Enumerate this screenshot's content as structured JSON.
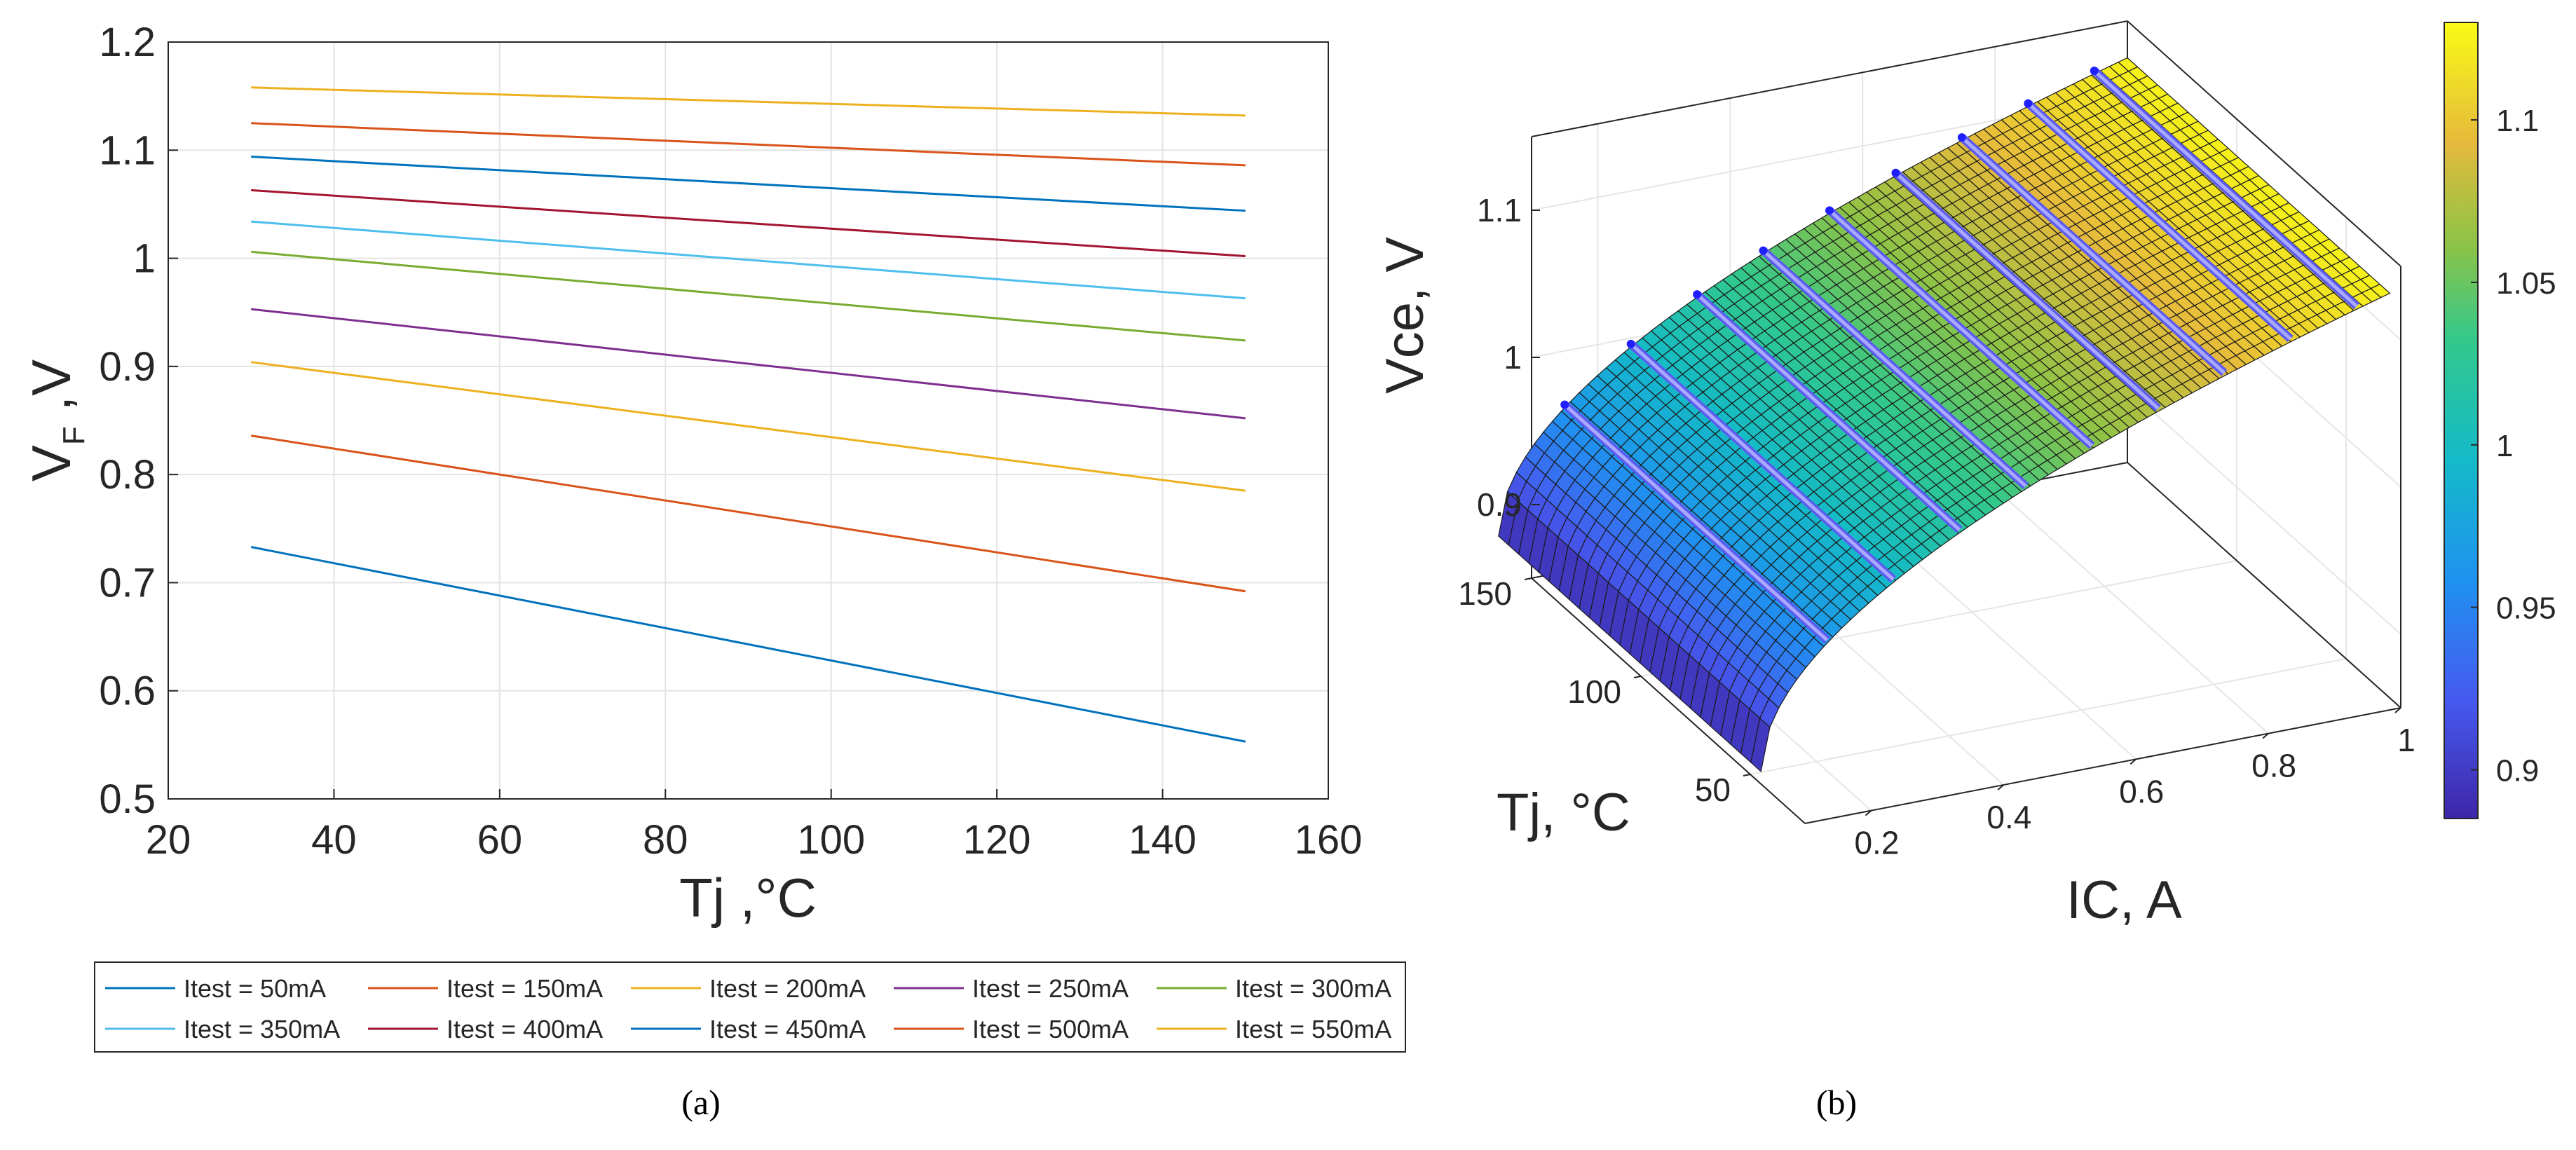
{
  "chart_data": [
    {
      "type": "line",
      "caption": "(a)",
      "xlabel": "Tj ,°C",
      "ylabel_main": "V",
      "ylabel_sub": "F",
      "ylabel_tail": " ,V",
      "xlim": [
        20,
        160
      ],
      "ylim": [
        0.5,
        1.2
      ],
      "xticks": [
        "20",
        "40",
        "60",
        "80",
        "100",
        "120",
        "140",
        "160"
      ],
      "yticks": [
        "0.5",
        "0.6",
        "0.7",
        "0.8",
        "0.9",
        "1",
        "1.1",
        "1.2"
      ],
      "grid": true,
      "legend_position": "bottom",
      "x": [
        30,
        150
      ],
      "series": [
        {
          "name": "Itest = 50mA",
          "color": "#0072BD",
          "values": [
            0.733,
            0.553
          ]
        },
        {
          "name": "Itest = 150mA",
          "color": "#D95319",
          "values": [
            0.836,
            0.692
          ]
        },
        {
          "name": "Itest = 200mA",
          "color": "#EDB120",
          "values": [
            0.904,
            0.785
          ]
        },
        {
          "name": "Itest = 250mA",
          "color": "#7E2F8E",
          "values": [
            0.953,
            0.852
          ]
        },
        {
          "name": "Itest = 300mA",
          "color": "#77AC30",
          "values": [
            1.006,
            0.924
          ]
        },
        {
          "name": "Itest = 350mA",
          "color": "#4DBEEE",
          "values": [
            1.034,
            0.963
          ]
        },
        {
          "name": "Itest = 400mA",
          "color": "#A2142F",
          "values": [
            1.063,
            1.002
          ]
        },
        {
          "name": "Itest = 450mA",
          "color": "#0072BD",
          "values": [
            1.094,
            1.044
          ]
        },
        {
          "name": "Itest = 500mA",
          "color": "#D95319",
          "values": [
            1.125,
            1.086
          ]
        },
        {
          "name": "Itest = 550mA",
          "color": "#EDB120",
          "values": [
            1.158,
            1.132
          ]
        }
      ]
    },
    {
      "type": "surface",
      "caption": "(b)",
      "xlabel": "IC, A",
      "ylabel": "Tj, °C",
      "zlabel": "Vce, V",
      "xlim": [
        0.1,
        1
      ],
      "ylim": [
        25,
        150
      ],
      "zlim": [
        0.85,
        1.15
      ],
      "xticks": [
        0.2,
        0.4,
        0.6,
        0.8,
        1
      ],
      "xtick_labels": [
        "0.2",
        "0.4",
        "0.6",
        "0.8",
        "1"
      ],
      "yticks": [
        50,
        100,
        150
      ],
      "ytick_labels": [
        "50",
        "100",
        "150"
      ],
      "zticks": [
        0.9,
        1,
        1.1
      ],
      "ztick_labels": [
        "0.9",
        "1",
        "1.1"
      ],
      "surface_ic_range": [
        0.05,
        1.0
      ],
      "surface_tj_range": [
        30,
        150
      ],
      "surface_vce_at_ic_min": 0.883,
      "surface_vce_at_ic_max": 1.125,
      "measured_ic_values": [
        0.15,
        0.25,
        0.35,
        0.45,
        0.55,
        0.65,
        0.75,
        0.85,
        0.95
      ],
      "colorbar_ticks": [
        0.9,
        0.95,
        1,
        1.05,
        1.1
      ],
      "colorbar_labels": [
        "0.9",
        "0.95",
        "1",
        "1.05",
        "1.1"
      ],
      "colorbar_range": [
        0.885,
        1.13
      ],
      "colormap": "parula"
    }
  ]
}
